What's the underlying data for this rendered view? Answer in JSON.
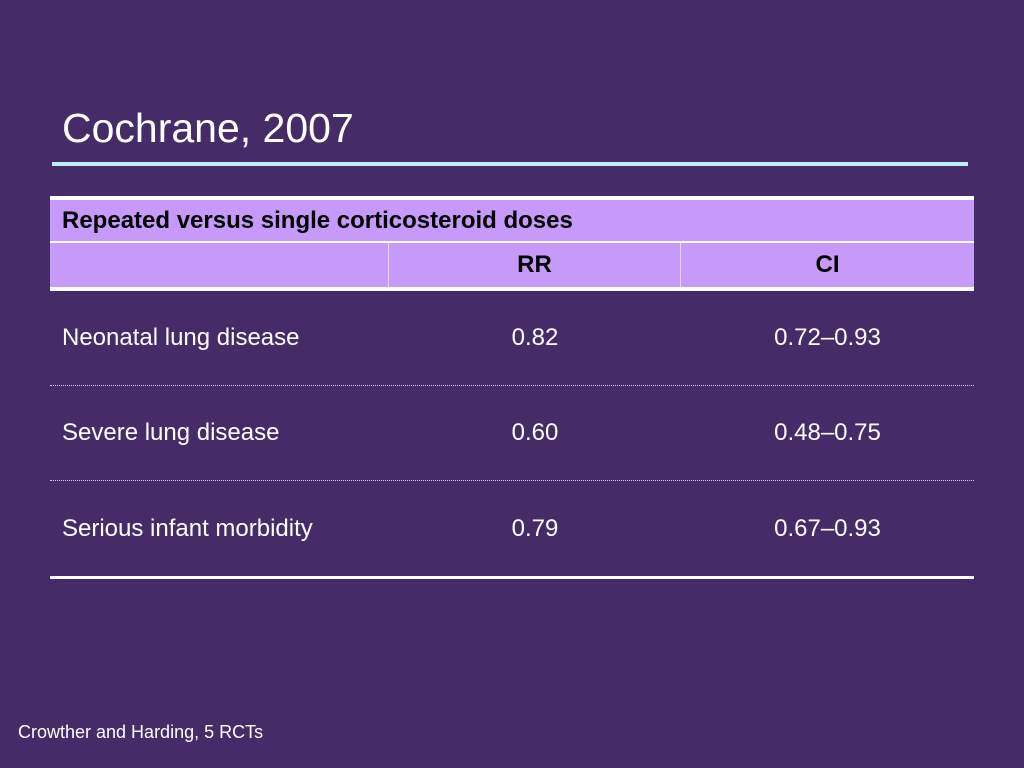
{
  "slide": {
    "title": "Cochrane, 2007",
    "footnote": "Crowther and Harding, 5 RCTs"
  },
  "table": {
    "caption": "Repeated versus single corticosteroid doses",
    "columns": [
      "",
      "RR",
      "CI"
    ],
    "rows": [
      {
        "label": "Neonatal lung disease",
        "rr": "0.82",
        "ci": "0.72–0.93"
      },
      {
        "label": "Severe lung disease",
        "rr": "0.60",
        "ci": "0.48–0.75"
      },
      {
        "label": "Serious infant morbidity",
        "rr": "0.79",
        "ci": "0.67–0.93"
      }
    ]
  },
  "colors": {
    "background": "#452c68",
    "header_fill": "#c799f8",
    "title_rule": "#bfeef8"
  }
}
